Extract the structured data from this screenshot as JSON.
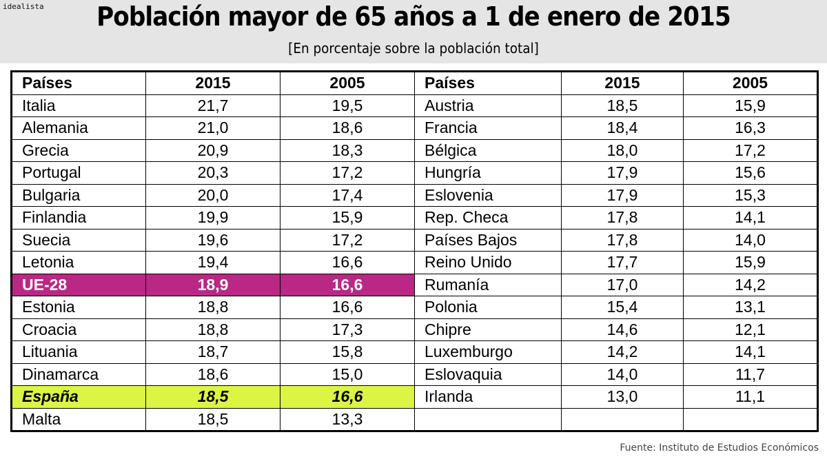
{
  "header": {
    "logo": "idealista",
    "title": "Población mayor de 65 años a 1 de enero de 2015",
    "subtitle": "[En porcentaje sobre la población total]"
  },
  "colors": {
    "eu_highlight": "#ba2784",
    "spain_highlight": "#dcf545",
    "header_band": "#e5e5e5"
  },
  "chart_data": {
    "type": "table",
    "title": "Población mayor de 65 años a 1 de enero de 2015",
    "subtitle": "[En porcentaje sobre la población total]",
    "columns": [
      "Países",
      "2015",
      "2005",
      "Países",
      "2015",
      "2005"
    ],
    "left": [
      [
        "Italia",
        "21,7",
        "19,5"
      ],
      [
        "Alemania",
        "21,0",
        "18,6"
      ],
      [
        "Grecia",
        "20,9",
        "18,3"
      ],
      [
        "Portugal",
        "20,3",
        "17,2"
      ],
      [
        "Bulgaria",
        "20,0",
        "17,4"
      ],
      [
        "Finlandia",
        "19,9",
        "15,9"
      ],
      [
        "Suecia",
        "19,6",
        "17,2"
      ],
      [
        "Letonia",
        "19,4",
        "16,6"
      ],
      [
        "UE-28",
        "18,9",
        "16,6"
      ],
      [
        "Estonia",
        "18,8",
        "16,6"
      ],
      [
        "Croacia",
        "18,8",
        "17,3"
      ],
      [
        "Lituania",
        "18,7",
        "15,8"
      ],
      [
        "Dinamarca",
        "18,6",
        "15,0"
      ],
      [
        "España",
        "18,5",
        "16,6"
      ],
      [
        "Malta",
        "18,5",
        "13,3"
      ]
    ],
    "right": [
      [
        "Austria",
        "18,5",
        "15,9"
      ],
      [
        "Francia",
        "18,4",
        "16,3"
      ],
      [
        "Bélgica",
        "18,0",
        "17,2"
      ],
      [
        "Hungría",
        "17,9",
        "15,6"
      ],
      [
        "Eslovenia",
        "17,9",
        "15,3"
      ],
      [
        "Rep. Checa",
        "17,8",
        "14,1"
      ],
      [
        "Países Bajos",
        "17,8",
        "14,0"
      ],
      [
        "Reino Unido",
        "17,7",
        "15,9"
      ],
      [
        "Rumanía",
        "17,0",
        "14,2"
      ],
      [
        "Polonia",
        "15,4",
        "13,1"
      ],
      [
        "Chipre",
        "14,6",
        "12,1"
      ],
      [
        "Luxemburgo",
        "14,2",
        "14,1"
      ],
      [
        "Eslovaquia",
        "14,0",
        "11,7"
      ],
      [
        "Irlanda",
        "13,0",
        "11,1"
      ],
      [
        "",
        "",
        ""
      ]
    ],
    "highlights": {
      "UE-28": "eu",
      "España": "es"
    }
  },
  "footer": {
    "source": "Fuente: Instituto de Estudios Económicos"
  }
}
